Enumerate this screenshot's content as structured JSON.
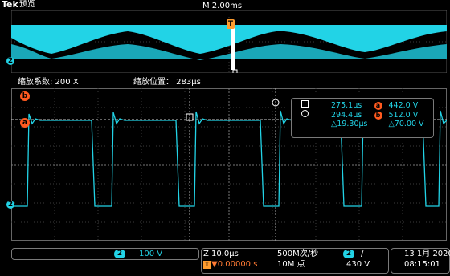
{
  "header": {
    "brand": "Tek",
    "preview_label": "预览",
    "timebase": "M 2.00ms",
    "zoom_factor_label": "缩放系数: 200 X",
    "zoom_position_label": "缩放位置： 283µs"
  },
  "markers": {
    "ch2": "2",
    "ref_a": "a",
    "ref_b": "b",
    "trigger": "T"
  },
  "cursor_readout": {
    "row1": {
      "time": "275.1µs",
      "ref": "a",
      "voltage": "442.0 V"
    },
    "row2": {
      "time": "294.4µs",
      "ref": "b",
      "voltage": "512.0 V"
    },
    "row3": {
      "delta_time": "△19.30µs",
      "delta_voltage": "△70.00 V"
    }
  },
  "status_bar": {
    "channel": "2",
    "channel_scale": "100 V",
    "zoom_time": "Z 10.0µs",
    "trigger_offset": "▼0.00000 s",
    "sample_rate": "500M次/秒",
    "record_length": "10M 点",
    "trigger_channel": "2",
    "trigger_slope": "/",
    "trigger_level": "430 V",
    "date": "13 1月 2020",
    "time": "08:15:01"
  },
  "colors": {
    "trace": "#22d3e6",
    "ref": "#ff5a1f",
    "grid": "#3c3c3c"
  }
}
